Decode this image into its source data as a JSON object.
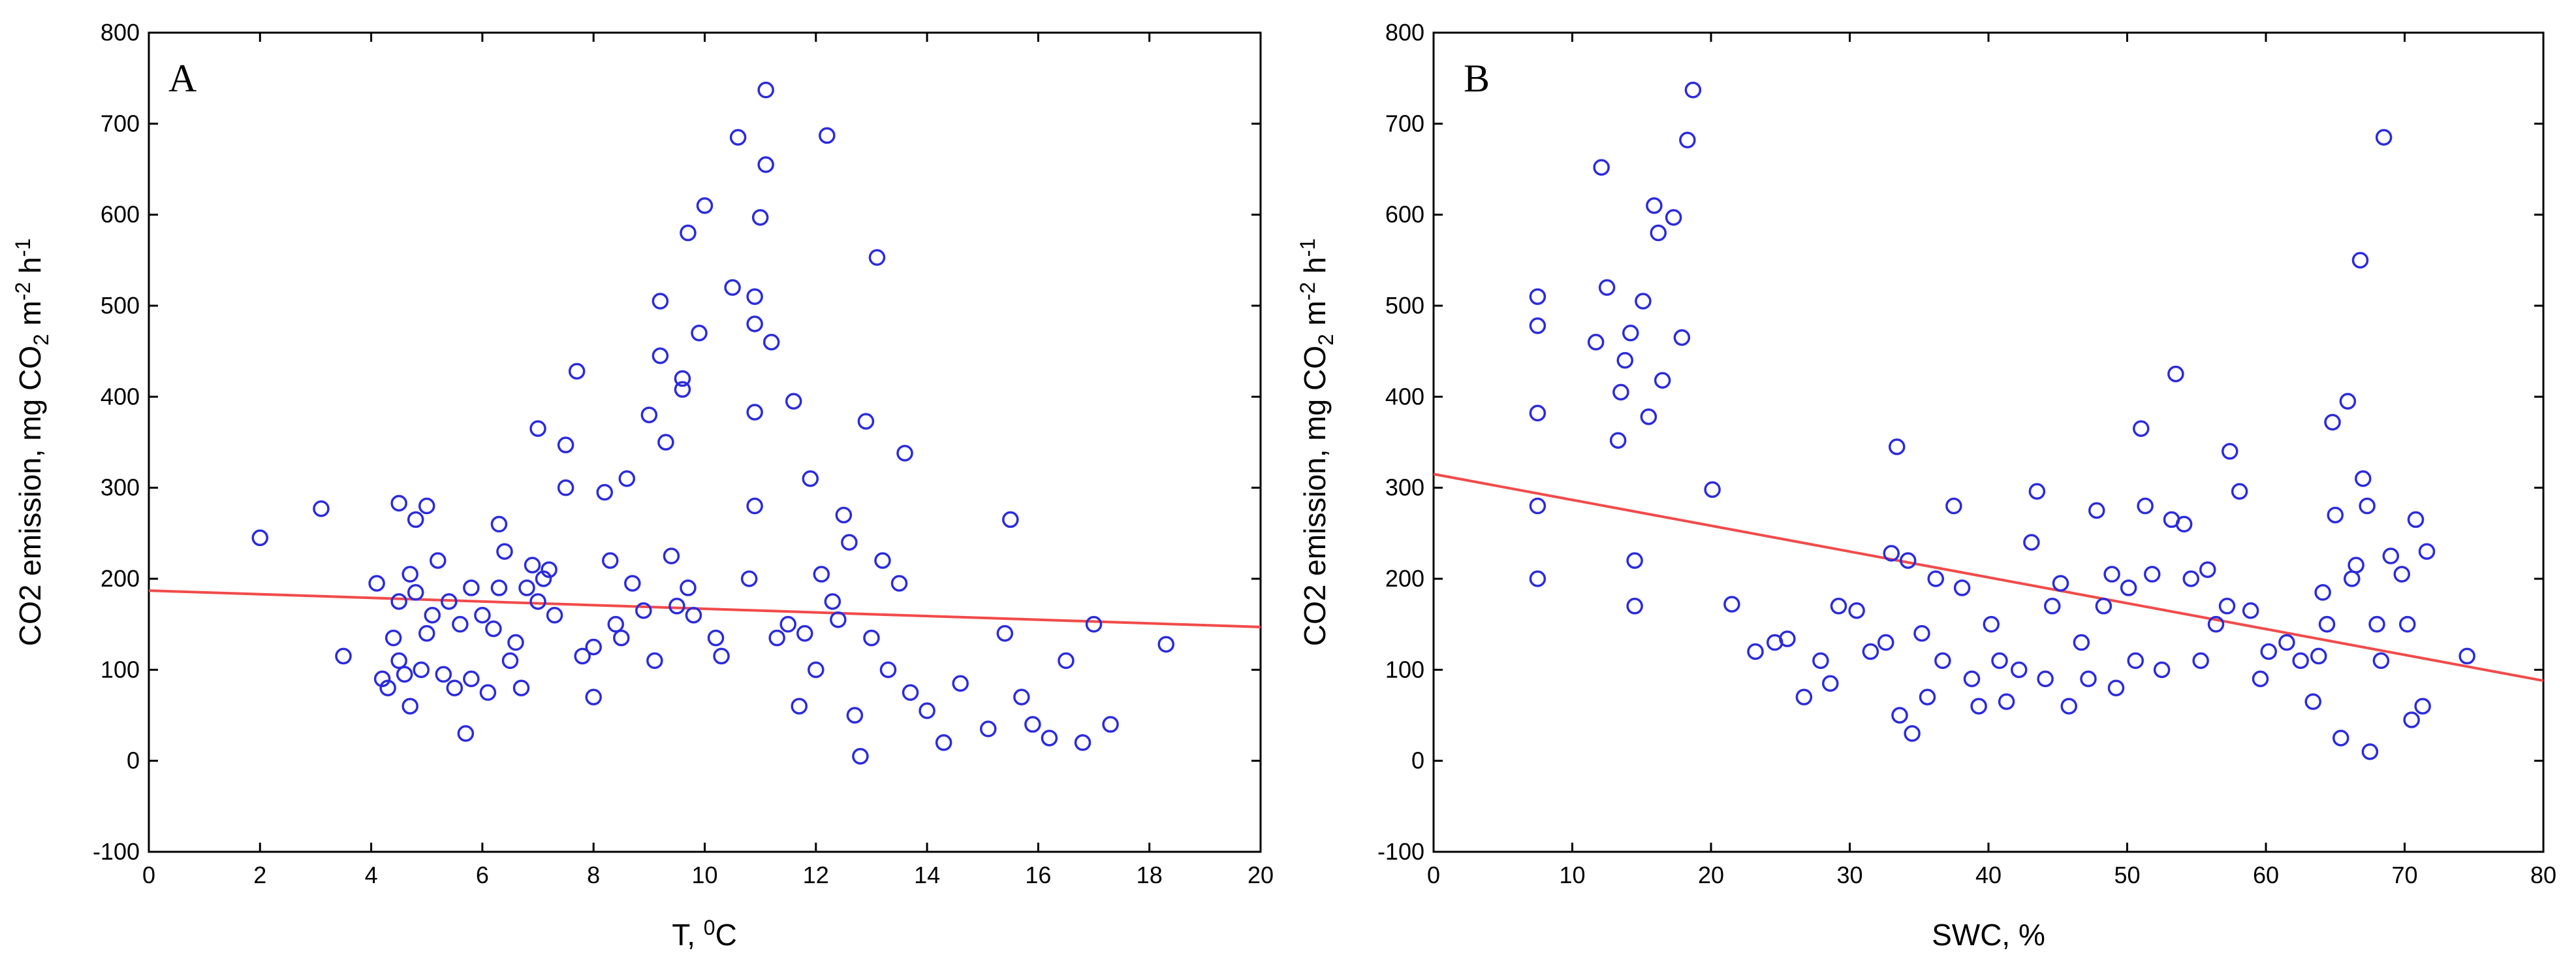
{
  "chart_data": [
    {
      "type": "scatter",
      "panel_label": "A",
      "xlabel": "T, ",
      "xlabel_sup": "0",
      "xlabel_unit": "C",
      "ylabel": "CO2 emission, mg CO",
      "ylabel_sub": "2",
      "ylabel_mid": " m",
      "ylabel_sup1": "-2",
      "ylabel_end": " h",
      "ylabel_sup2": "-1",
      "xlim": [
        0,
        20
      ],
      "ylim": [
        -100,
        800
      ],
      "xticks": [
        "0",
        "2",
        "4",
        "6",
        "8",
        "10",
        "12",
        "14",
        "16",
        "18",
        "20"
      ],
      "yticks": [
        "-100",
        "0",
        "100",
        "200",
        "300",
        "400",
        "500",
        "600",
        "700",
        "800"
      ],
      "fit_line": {
        "x": [
          0,
          20
        ],
        "y": [
          187,
          147
        ],
        "color": "#f24a4a"
      },
      "point_color": "#2b2bdd",
      "points": [
        [
          2.0,
          245
        ],
        [
          3.1,
          277
        ],
        [
          3.5,
          115
        ],
        [
          4.1,
          195
        ],
        [
          4.2,
          90
        ],
        [
          4.3,
          80
        ],
        [
          4.4,
          135
        ],
        [
          4.5,
          283
        ],
        [
          4.5,
          175
        ],
        [
          4.5,
          110
        ],
        [
          4.6,
          95
        ],
        [
          4.7,
          205
        ],
        [
          4.7,
          60
        ],
        [
          4.8,
          265
        ],
        [
          4.8,
          185
        ],
        [
          4.9,
          100
        ],
        [
          5.0,
          280
        ],
        [
          5.0,
          140
        ],
        [
          5.1,
          160
        ],
        [
          5.2,
          220
        ],
        [
          5.3,
          95
        ],
        [
          5.4,
          175
        ],
        [
          5.5,
          80
        ],
        [
          5.6,
          150
        ],
        [
          5.7,
          30
        ],
        [
          5.8,
          190
        ],
        [
          5.8,
          90
        ],
        [
          6.0,
          160
        ],
        [
          6.1,
          75
        ],
        [
          6.2,
          145
        ],
        [
          6.3,
          260
        ],
        [
          6.3,
          190
        ],
        [
          6.4,
          230
        ],
        [
          6.5,
          110
        ],
        [
          6.6,
          130
        ],
        [
          6.7,
          80
        ],
        [
          6.8,
          190
        ],
        [
          6.9,
          215
        ],
        [
          7.0,
          175
        ],
        [
          7.0,
          365
        ],
        [
          7.1,
          200
        ],
        [
          7.2,
          210
        ],
        [
          7.3,
          160
        ],
        [
          7.5,
          347
        ],
        [
          7.5,
          300
        ],
        [
          7.7,
          428
        ],
        [
          7.8,
          115
        ],
        [
          8.0,
          125
        ],
        [
          8.0,
          70
        ],
        [
          8.2,
          295
        ],
        [
          8.3,
          220
        ],
        [
          8.4,
          150
        ],
        [
          8.5,
          135
        ],
        [
          8.6,
          310
        ],
        [
          8.7,
          195
        ],
        [
          8.9,
          165
        ],
        [
          9.0,
          380
        ],
        [
          9.1,
          110
        ],
        [
          9.2,
          505
        ],
        [
          9.2,
          445
        ],
        [
          9.3,
          350
        ],
        [
          9.4,
          225
        ],
        [
          9.5,
          170
        ],
        [
          9.6,
          420
        ],
        [
          9.6,
          408
        ],
        [
          9.7,
          580
        ],
        [
          9.7,
          190
        ],
        [
          9.8,
          160
        ],
        [
          9.9,
          470
        ],
        [
          10.0,
          610
        ],
        [
          10.2,
          135
        ],
        [
          10.3,
          115
        ],
        [
          10.5,
          520
        ],
        [
          10.6,
          685
        ],
        [
          10.8,
          200
        ],
        [
          10.9,
          510
        ],
        [
          10.9,
          480
        ],
        [
          10.9,
          383
        ],
        [
          10.9,
          280
        ],
        [
          11.0,
          597
        ],
        [
          11.1,
          655
        ],
        [
          11.1,
          737
        ],
        [
          11.2,
          460
        ],
        [
          11.3,
          135
        ],
        [
          11.5,
          150
        ],
        [
          11.6,
          395
        ],
        [
          11.7,
          60
        ],
        [
          11.8,
          140
        ],
        [
          11.9,
          310
        ],
        [
          12.0,
          100
        ],
        [
          12.1,
          205
        ],
        [
          12.2,
          687
        ],
        [
          12.3,
          175
        ],
        [
          12.4,
          155
        ],
        [
          12.5,
          270
        ],
        [
          12.6,
          240
        ],
        [
          12.7,
          50
        ],
        [
          12.8,
          5
        ],
        [
          12.9,
          373
        ],
        [
          13.0,
          135
        ],
        [
          13.1,
          553
        ],
        [
          13.2,
          220
        ],
        [
          13.3,
          100
        ],
        [
          13.5,
          195
        ],
        [
          13.6,
          338
        ],
        [
          13.7,
          75
        ],
        [
          14.0,
          55
        ],
        [
          14.3,
          20
        ],
        [
          14.6,
          85
        ],
        [
          15.1,
          35
        ],
        [
          15.4,
          140
        ],
        [
          15.5,
          265
        ],
        [
          15.7,
          70
        ],
        [
          15.9,
          40
        ],
        [
          16.2,
          25
        ],
        [
          16.5,
          110
        ],
        [
          16.8,
          20
        ],
        [
          17.0,
          150
        ],
        [
          17.3,
          40
        ],
        [
          18.3,
          128
        ]
      ]
    },
    {
      "type": "scatter",
      "panel_label": "B",
      "xlabel": "SWC, %",
      "ylabel": "CO2 emission, mg CO",
      "ylabel_sub": "2",
      "ylabel_mid": " m",
      "ylabel_sup1": "-2",
      "ylabel_end": " h",
      "ylabel_sup2": "-1",
      "xlim": [
        0,
        80
      ],
      "ylim": [
        -100,
        800
      ],
      "xticks": [
        "0",
        "10",
        "20",
        "30",
        "40",
        "50",
        "60",
        "70",
        "80"
      ],
      "yticks": [
        "-100",
        "0",
        "100",
        "200",
        "300",
        "400",
        "500",
        "600",
        "700",
        "800"
      ],
      "fit_line": {
        "x": [
          0,
          80
        ],
        "y": [
          315,
          88
        ],
        "color": "#f24a4a"
      },
      "point_color": "#2b2bdd",
      "points": [
        [
          7.5,
          510
        ],
        [
          7.5,
          478
        ],
        [
          7.5,
          382
        ],
        [
          7.5,
          280
        ],
        [
          7.5,
          200
        ],
        [
          11.7,
          460
        ],
        [
          12.1,
          652
        ],
        [
          12.5,
          520
        ],
        [
          13.3,
          352
        ],
        [
          13.5,
          405
        ],
        [
          13.8,
          440
        ],
        [
          14.2,
          470
        ],
        [
          14.5,
          220
        ],
        [
          14.5,
          170
        ],
        [
          15.1,
          505
        ],
        [
          15.5,
          378
        ],
        [
          15.9,
          610
        ],
        [
          16.2,
          580
        ],
        [
          16.5,
          418
        ],
        [
          17.3,
          597
        ],
        [
          17.9,
          465
        ],
        [
          18.3,
          682
        ],
        [
          18.7,
          737
        ],
        [
          20.1,
          298
        ],
        [
          21.5,
          172
        ],
        [
          23.2,
          120
        ],
        [
          24.6,
          130
        ],
        [
          25.5,
          134
        ],
        [
          26.7,
          70
        ],
        [
          27.9,
          110
        ],
        [
          28.6,
          85
        ],
        [
          29.2,
          170
        ],
        [
          30.5,
          165
        ],
        [
          31.5,
          120
        ],
        [
          32.6,
          130
        ],
        [
          33.0,
          228
        ],
        [
          33.4,
          345
        ],
        [
          33.6,
          50
        ],
        [
          34.2,
          220
        ],
        [
          34.5,
          30
        ],
        [
          35.2,
          140
        ],
        [
          35.6,
          70
        ],
        [
          36.2,
          200
        ],
        [
          36.7,
          110
        ],
        [
          37.5,
          280
        ],
        [
          38.1,
          190
        ],
        [
          38.8,
          90
        ],
        [
          39.3,
          60
        ],
        [
          40.2,
          150
        ],
        [
          40.8,
          110
        ],
        [
          41.3,
          65
        ],
        [
          42.2,
          100
        ],
        [
          43.1,
          240
        ],
        [
          43.5,
          296
        ],
        [
          44.1,
          90
        ],
        [
          44.6,
          170
        ],
        [
          45.2,
          195
        ],
        [
          45.8,
          60
        ],
        [
          46.7,
          130
        ],
        [
          47.2,
          90
        ],
        [
          47.8,
          275
        ],
        [
          48.3,
          170
        ],
        [
          48.9,
          205
        ],
        [
          49.2,
          80
        ],
        [
          50.1,
          190
        ],
        [
          50.6,
          110
        ],
        [
          51.0,
          365
        ],
        [
          51.3,
          280
        ],
        [
          51.8,
          205
        ],
        [
          52.5,
          100
        ],
        [
          53.2,
          265
        ],
        [
          53.5,
          425
        ],
        [
          54.1,
          260
        ],
        [
          54.6,
          200
        ],
        [
          55.3,
          110
        ],
        [
          55.8,
          210
        ],
        [
          56.4,
          150
        ],
        [
          57.2,
          170
        ],
        [
          57.4,
          340
        ],
        [
          58.1,
          296
        ],
        [
          58.9,
          165
        ],
        [
          59.6,
          90
        ],
        [
          60.2,
          120
        ],
        [
          61.5,
          130
        ],
        [
          62.5,
          110
        ],
        [
          63.4,
          65
        ],
        [
          63.8,
          115
        ],
        [
          64.1,
          185
        ],
        [
          64.4,
          150
        ],
        [
          64.8,
          372
        ],
        [
          65.0,
          270
        ],
        [
          65.4,
          25
        ],
        [
          65.9,
          395
        ],
        [
          66.2,
          200
        ],
        [
          66.5,
          215
        ],
        [
          66.8,
          550
        ],
        [
          67.0,
          310
        ],
        [
          67.3,
          280
        ],
        [
          67.5,
          10
        ],
        [
          68.0,
          150
        ],
        [
          68.3,
          110
        ],
        [
          68.5,
          685
        ],
        [
          69.0,
          225
        ],
        [
          69.8,
          205
        ],
        [
          70.2,
          150
        ],
        [
          70.5,
          45
        ],
        [
          70.8,
          265
        ],
        [
          71.3,
          60
        ],
        [
          71.6,
          230
        ],
        [
          74.5,
          115
        ]
      ]
    }
  ]
}
